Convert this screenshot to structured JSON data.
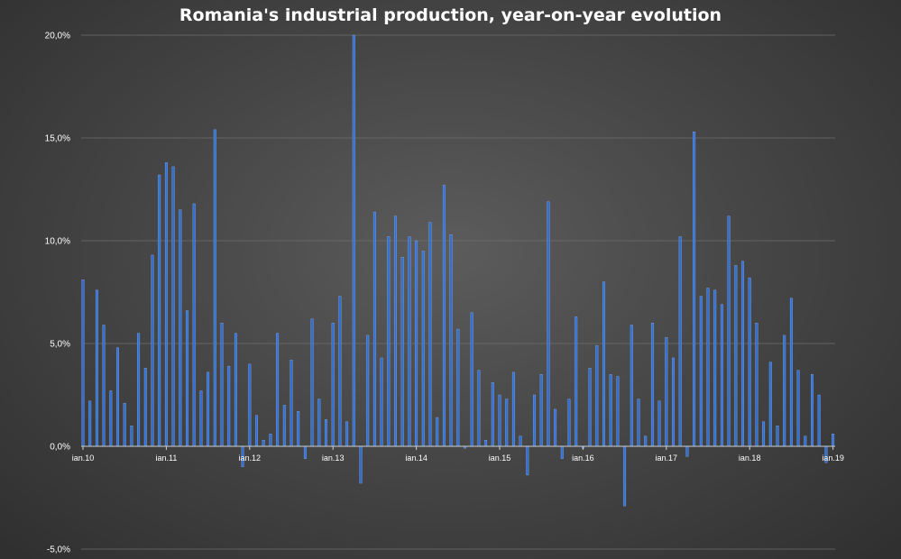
{
  "chart_data": {
    "type": "bar",
    "title": "Romania's industrial production, year-on-year evolution",
    "xlabel": "",
    "ylabel": "",
    "ylim": [
      -5,
      20
    ],
    "y_ticks": [
      "-5,0%",
      "0,0%",
      "5,0%",
      "10,0%",
      "15,0%",
      "20,0%"
    ],
    "y_tick_values": [
      -5,
      0,
      5,
      10,
      15,
      20
    ],
    "x_ticks": [
      "ian.10",
      "ian.11",
      "ian.12",
      "ian.13",
      "ian.14",
      "ian.15",
      "ian.16",
      "ian.17",
      "ian.18",
      "ian.19"
    ],
    "grid": true,
    "bar_color": "#2f6fd6",
    "series": [
      {
        "values": [
          8.1,
          2.2,
          7.6,
          5.9,
          2.7,
          4.8,
          2.1,
          1.0,
          5.5,
          3.8,
          9.3,
          13.2,
          13.8,
          13.6,
          11.5,
          6.6,
          11.8,
          2.7,
          3.6,
          15.4,
          6.0,
          3.9,
          5.5,
          -1.0,
          4.0,
          1.5,
          0.3,
          0.6,
          5.5,
          2.0,
          4.2,
          1.7,
          -0.6,
          6.2,
          2.3,
          1.3,
          6.0,
          7.3,
          1.2,
          20.0,
          -1.8,
          5.4,
          11.4,
          4.3,
          10.2,
          11.2,
          9.2,
          10.2,
          10.0,
          9.5,
          10.9,
          1.4,
          12.7,
          10.3,
          5.7,
          -0.1,
          6.5,
          3.7,
          0.3,
          3.1,
          2.5,
          2.3,
          3.6,
          0.5,
          -1.4,
          2.5,
          3.5,
          11.9,
          1.8,
          -0.6,
          2.3,
          6.3,
          -0.1,
          3.8,
          4.9,
          8.0,
          3.5,
          3.4,
          -2.9,
          5.9,
          2.3,
          0.5,
          6.0,
          2.2,
          5.3,
          4.3,
          10.2,
          -0.5,
          15.3,
          7.3,
          7.7,
          7.6,
          6.9,
          11.2,
          8.8,
          9.0,
          8.2,
          6.0,
          1.2,
          4.1,
          1.0,
          5.4,
          7.2,
          3.7,
          0.5,
          3.5,
          2.5,
          -0.8,
          0.6
        ]
      }
    ]
  }
}
